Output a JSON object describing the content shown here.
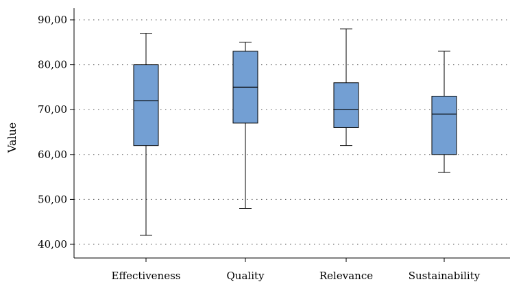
{
  "chart_data": {
    "type": "box",
    "ylabel": "Value",
    "xlabel": "",
    "ylim": [
      38,
      92
    ],
    "yticks": [
      40,
      50,
      60,
      70,
      80,
      90
    ],
    "ytick_labels": [
      "40,00",
      "50,00",
      "60,00",
      "70,00",
      "80,00",
      "90,00"
    ],
    "grid": "horizontal-dotted",
    "box_fill": "#739fd3",
    "box_stroke": "#000000",
    "categories": [
      "Effectiveness",
      "Quality",
      "Relevance",
      "Sustainability"
    ],
    "boxes": [
      {
        "category": "Effectiveness",
        "min": 42,
        "q1": 62,
        "median": 72,
        "q3": 80,
        "max": 87
      },
      {
        "category": "Quality",
        "min": 48,
        "q1": 67,
        "median": 75,
        "q3": 83,
        "max": 85
      },
      {
        "category": "Relevance",
        "min": 62,
        "q1": 66,
        "median": 70,
        "q3": 76,
        "max": 88
      },
      {
        "category": "Sustainability",
        "min": 56,
        "q1": 60,
        "median": 69,
        "q3": 73,
        "max": 83
      }
    ]
  }
}
